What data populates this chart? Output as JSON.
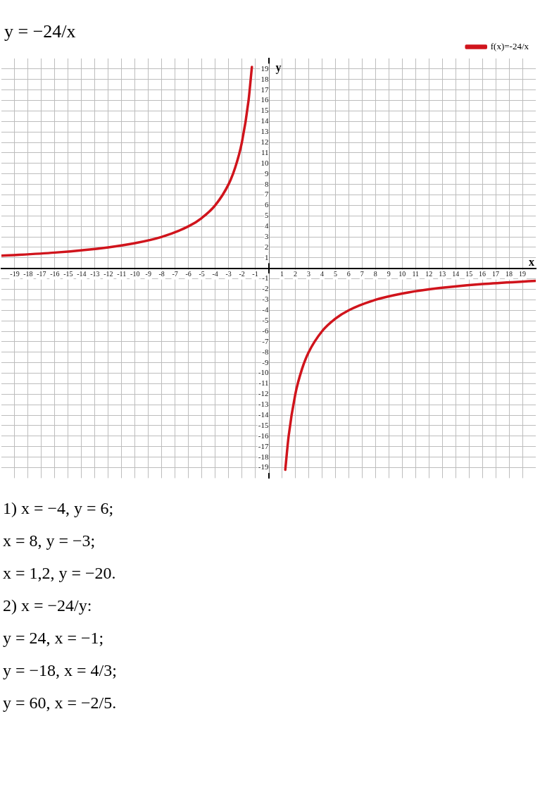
{
  "chart_data": {
    "type": "line",
    "title": "y = −24/x",
    "xlabel": "x",
    "ylabel": "y",
    "x": [
      -20,
      -16,
      -12,
      -10,
      -8,
      -6,
      -5,
      -4,
      -3,
      -2.5,
      -2,
      -1.5,
      -1.25,
      0,
      1.25,
      1.5,
      2,
      2.5,
      3,
      4,
      5,
      6,
      8,
      10,
      12,
      16,
      20
    ],
    "series": [
      {
        "name": "f(x)=-24/x",
        "color": "#d0141c",
        "values": [
          1.2,
          1.5,
          2,
          2.4,
          3,
          4,
          4.8,
          6,
          8,
          9.6,
          12,
          16,
          19.2,
          null,
          -19.2,
          -16,
          -12,
          -9.6,
          -8,
          -6,
          -4.8,
          -4,
          -3,
          -2.4,
          -2,
          -1.5,
          -1.2
        ]
      }
    ],
    "xlim": [
      -20,
      20
    ],
    "ylim": [
      -20,
      20
    ],
    "xticks": [
      -19,
      -18,
      -17,
      -16,
      -15,
      -14,
      -13,
      -12,
      -11,
      -10,
      -9,
      -8,
      -7,
      -6,
      -5,
      -4,
      -3,
      -2,
      -1,
      1,
      2,
      3,
      4,
      5,
      6,
      7,
      8,
      9,
      10,
      11,
      12,
      13,
      14,
      15,
      16,
      17,
      18,
      19
    ],
    "yticks": [
      -19,
      -18,
      -17,
      -16,
      -15,
      -14,
      -13,
      -12,
      -11,
      -10,
      -9,
      -8,
      -7,
      -6,
      -5,
      -4,
      -3,
      -2,
      -1,
      1,
      2,
      3,
      4,
      5,
      6,
      7,
      8,
      9,
      10,
      11,
      12,
      13,
      14,
      15,
      16,
      17,
      18,
      19
    ],
    "grid": true,
    "legend": "top right",
    "marker": "none",
    "line_style": "solid",
    "annotations": [
      "1) x = −4,    y = 6;",
      "x = 8,    y = −3;",
      "x = 1,2,    y = −20.",
      "2) x = −24/y:",
      "y = 24,    x = −1;",
      "y = −18,    x = 4/3;",
      "y = 60,    x = −2/5."
    ]
  }
}
